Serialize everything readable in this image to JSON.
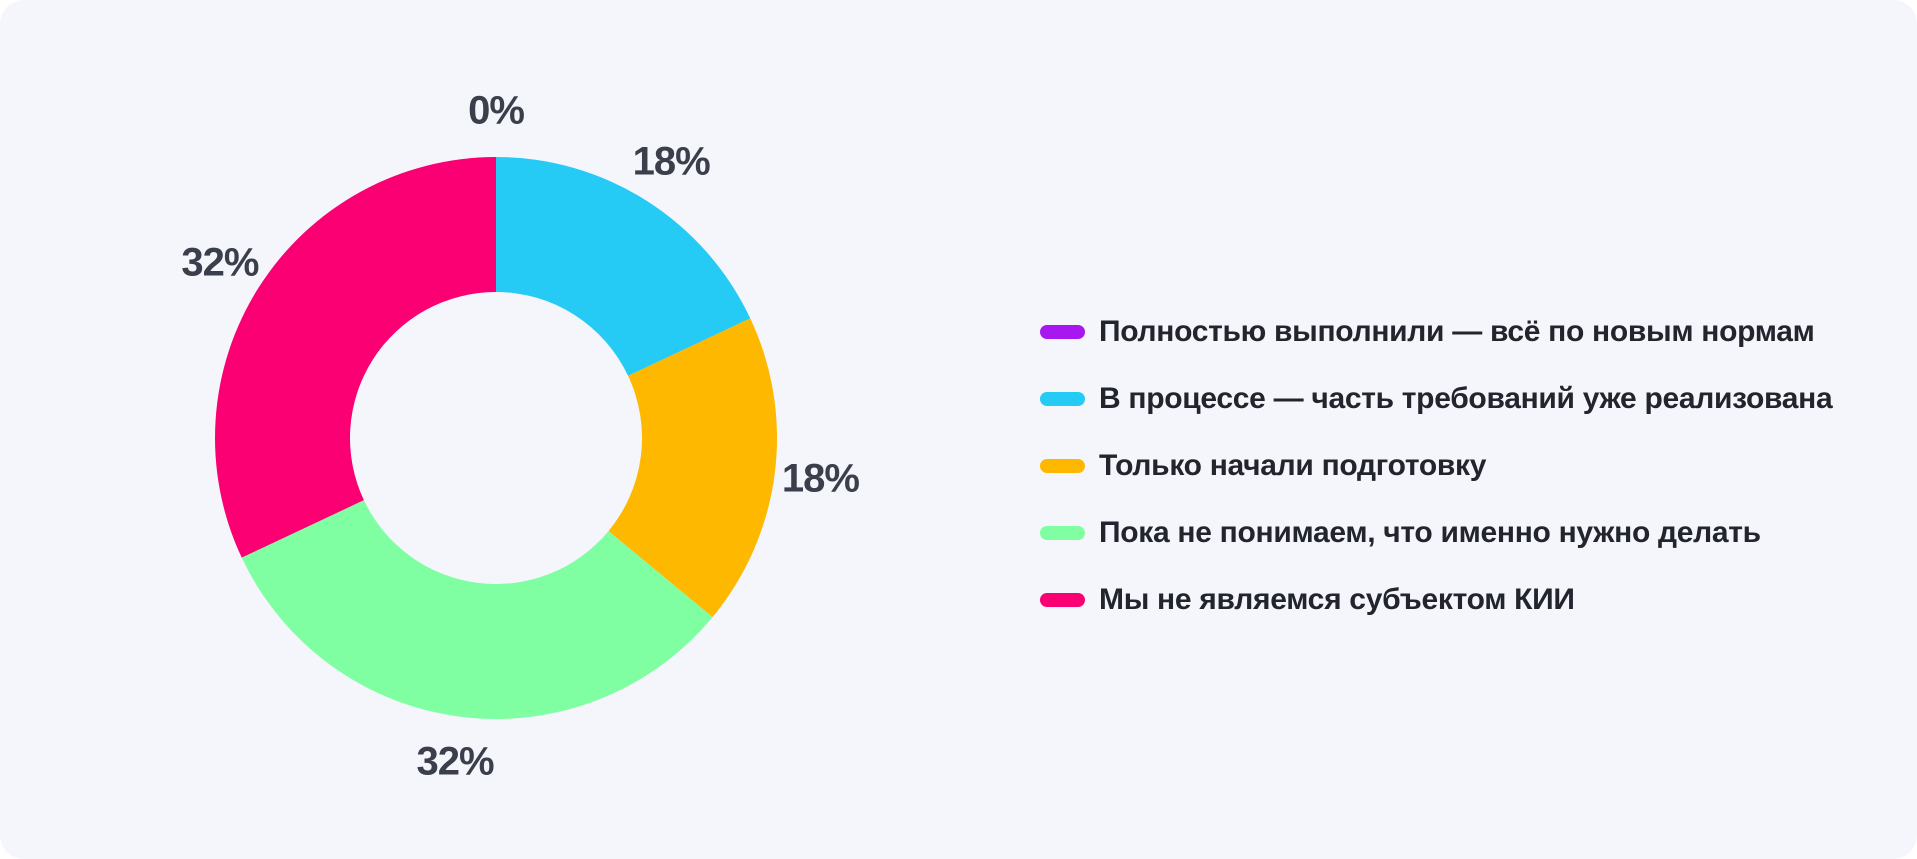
{
  "canvas": {
    "background_color": "#F5F6FB",
    "page_background_color": "#FFFFFF",
    "percent_label_color": "#3B3F4C",
    "legend_text_color": "#22252E"
  },
  "chart_data": {
    "type": "pie",
    "subtype": "donut",
    "title": "",
    "direction": "clockwise",
    "start_angle_deg": 0,
    "inner_radius_ratio": 0.52,
    "legend_position": "right",
    "categories": [
      "Полностью выполнили — всё по новым нормам",
      "В процессе — часть требований уже реализована",
      "Только начали подготовку",
      "Пока не понимаем, что именно нужно делать",
      "Мы не являемся субъектом КИИ"
    ],
    "values": [
      0,
      18,
      18,
      32,
      32
    ],
    "percent_labels": [
      "0%",
      "18%",
      "18%",
      "32%",
      "32%"
    ],
    "colors": [
      "#A816F0",
      "#25CAF5",
      "#FFB800",
      "#80FFA2",
      "#FA0073"
    ]
  }
}
